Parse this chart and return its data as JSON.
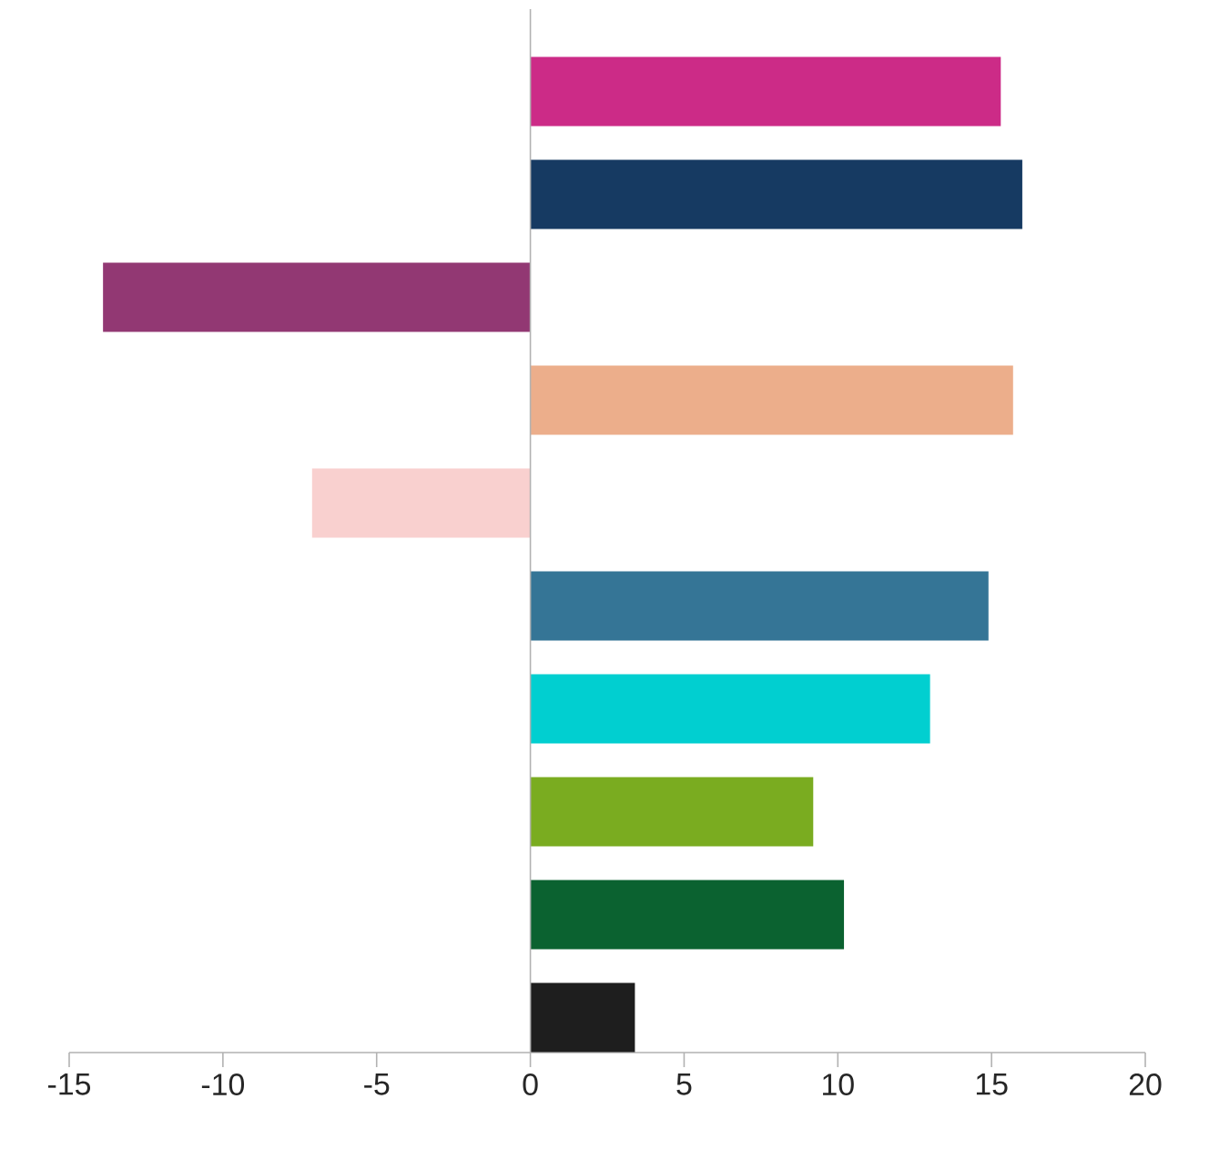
{
  "chart_data": {
    "type": "bar",
    "orientation": "horizontal",
    "categories": [
      null,
      null,
      null,
      null,
      null,
      null,
      null,
      null,
      null,
      null
    ],
    "values": [
      15.3,
      16.0,
      -13.9,
      15.7,
      -7.1,
      14.9,
      13.0,
      9.2,
      10.2,
      3.4
    ],
    "colors": [
      "#cc2b87",
      "#163a62",
      "#923873",
      "#ecae8b",
      "#f9d0cf",
      "#357596",
      "#01cfd0",
      "#7aac20",
      "#0b6230",
      "#1e1e1e"
    ],
    "xlim": [
      -15,
      20
    ],
    "xticks": [
      -15,
      -10,
      -5,
      0,
      5,
      10,
      15,
      20
    ],
    "tick_labels": "x"
  }
}
